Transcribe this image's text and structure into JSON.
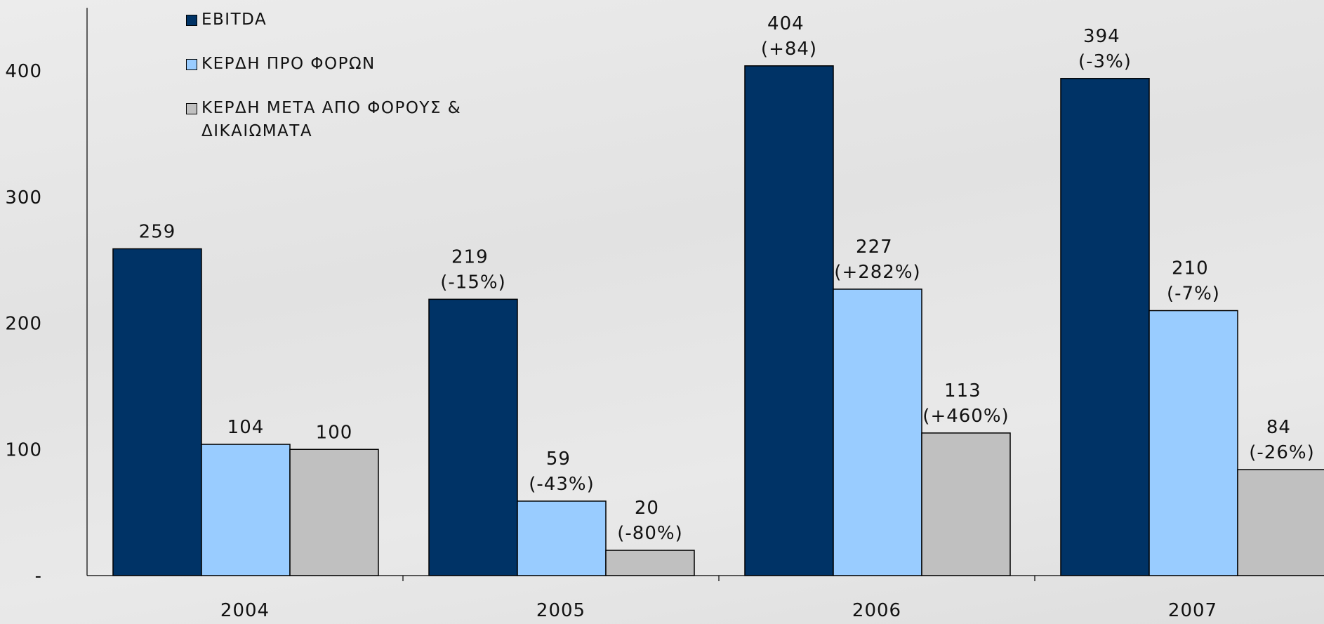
{
  "chart_data": {
    "type": "bar",
    "categories": [
      "2004",
      "2005",
      "2006",
      "2007"
    ],
    "series": [
      {
        "name": "EBITDA",
        "color": "#003366",
        "values": [
          259,
          219,
          404,
          394
        ],
        "value_labels": [
          "259",
          "219 (-15%)",
          "404 (+84)",
          "394 (-3%)"
        ]
      },
      {
        "name": "ΚΕΡΔΗ ΠΡΟ ΦΟΡΩΝ",
        "color": "#99ccff",
        "values": [
          104,
          59,
          227,
          210
        ],
        "value_labels": [
          "104",
          "59 (-43%)",
          "227 (+282%)",
          "210 (-7%)"
        ]
      },
      {
        "name": "ΚΕΡΔΗ ΜΕΤΑ ΑΠΟ ΦΟΡΟΥΣ & ΔΙΚΑΙΩΜΑΤΑ",
        "color": "#c0c0c0",
        "values": [
          100,
          20,
          113,
          84
        ],
        "value_labels": [
          "100",
          "20 (-80%)",
          "113 (+460%)",
          "84 (-26%)"
        ]
      }
    ],
    "ylim": [
      0,
      450
    ],
    "yticks": [
      {
        "value": 0,
        "label": "-"
      },
      100,
      200,
      300,
      400
    ],
    "grid": false,
    "legend": "top-left"
  }
}
